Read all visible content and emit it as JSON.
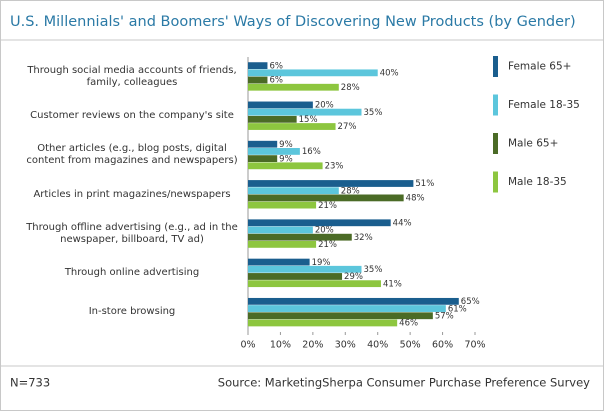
{
  "chart_data": {
    "type": "bar",
    "orientation": "horizontal",
    "title": "U.S. Millennials' and Boomers' Ways of Discovering New Products (by Gender)",
    "note": "N=733",
    "source": "Source: MarketingSherpa Consumer Purchase Preference Survey",
    "categories": [
      "Through social media accounts of friends, family, colleagues",
      "Customer reviews on the company's site",
      "Other articles (e.g., blog posts, digital content from magazines and newspapers)",
      "Articles in print magazines/newspapers",
      "Through offline advertising (e.g., ad in the newspaper, billboard, TV ad)",
      "Through online advertising",
      "In-store browsing"
    ],
    "series": [
      {
        "name": "Female 65+",
        "color": "#1a5e8e",
        "values": [
          6,
          20,
          9,
          51,
          44,
          19,
          65
        ],
        "value_labels": [
          "6%",
          "20%",
          "9%",
          "51%",
          "44%",
          "19%",
          "65%"
        ]
      },
      {
        "name": "Female 18-35",
        "color": "#5cc6dc",
        "values": [
          40,
          35,
          16,
          28,
          20,
          35,
          61
        ],
        "value_labels": [
          "40%",
          "35%",
          "16%",
          "28%",
          "20%",
          "35%",
          "61%"
        ]
      },
      {
        "name": "Male 65+",
        "color": "#4b6b26",
        "values": [
          6,
          15,
          9,
          48,
          32,
          29,
          57
        ],
        "value_labels": [
          "6%",
          "15%",
          "9%",
          "48%",
          "32%",
          "29%",
          "57%"
        ]
      },
      {
        "name": "Male 18-35",
        "color": "#8dc63f",
        "values": [
          28,
          27,
          23,
          21,
          21,
          41,
          46
        ],
        "value_labels": [
          "28%",
          "27%",
          "23%",
          "21%",
          "21%",
          "41%",
          "46%"
        ]
      }
    ],
    "xlim": [
      0,
      70
    ],
    "xticks": [
      {
        "value": 0,
        "label": "0%"
      },
      {
        "value": 10,
        "label": "10%"
      },
      {
        "value": 20,
        "label": "20%"
      },
      {
        "value": 30,
        "label": "30%"
      },
      {
        "value": 40,
        "label": "40%"
      },
      {
        "value": 50,
        "label": "50%"
      },
      {
        "value": 60,
        "label": "60%"
      },
      {
        "value": 70,
        "label": "70%"
      }
    ],
    "legend": "right"
  }
}
